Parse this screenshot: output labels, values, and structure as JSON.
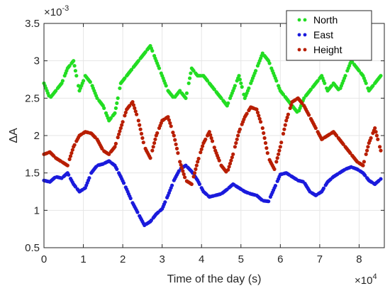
{
  "chart_data": {
    "type": "scatter",
    "xlabel": "Time of the day (s)",
    "ylabel": "ΔA",
    "x_exponent_label": "×10",
    "x_exponent": "4",
    "y_exponent_label": "×10",
    "y_exponent": "-3",
    "xlim": [
      0,
      86400
    ],
    "ylim": [
      0.0005,
      0.0035
    ],
    "x_ticks": [
      0,
      10000,
      20000,
      30000,
      40000,
      50000,
      60000,
      70000,
      80000
    ],
    "x_tick_labels": [
      "0",
      "1",
      "2",
      "3",
      "4",
      "5",
      "6",
      "7",
      "8"
    ],
    "y_ticks": [
      0.0005,
      0.001,
      0.0015,
      0.002,
      0.0025,
      0.003,
      0.0035
    ],
    "y_tick_labels": [
      "0.5",
      "1",
      "1.5",
      "2",
      "2.5",
      "3",
      "3.5"
    ],
    "grid": true,
    "legend_position": "top-right",
    "series": [
      {
        "name": "North",
        "color": "#22dd22",
        "x": [
          0,
          1500,
          3000,
          4500,
          6000,
          7500,
          9000,
          10500,
          12000,
          13500,
          15000,
          16500,
          18000,
          19500,
          21000,
          22500,
          24000,
          25500,
          27000,
          28500,
          30000,
          31500,
          33000,
          34500,
          36000,
          37500,
          39000,
          40500,
          42000,
          43500,
          45000,
          46500,
          48000,
          49500,
          51000,
          52500,
          54000,
          55500,
          57000,
          58500,
          60000,
          61500,
          63000,
          64500,
          66000,
          67500,
          69000,
          70500,
          72000,
          73500,
          75000,
          76500,
          78000,
          79500,
          81000,
          82500,
          84000,
          85500
        ],
        "y": [
          0.0027,
          0.0025,
          0.0026,
          0.0027,
          0.0029,
          0.003,
          0.0026,
          0.0028,
          0.0027,
          0.0025,
          0.0024,
          0.0022,
          0.0023,
          0.0027,
          0.0028,
          0.0029,
          0.003,
          0.0031,
          0.0032,
          0.003,
          0.0028,
          0.0026,
          0.0025,
          0.0026,
          0.0025,
          0.0029,
          0.0028,
          0.0028,
          0.0027,
          0.0026,
          0.0025,
          0.0024,
          0.0026,
          0.0028,
          0.0025,
          0.0027,
          0.0029,
          0.0031,
          0.003,
          0.0028,
          0.0026,
          0.0025,
          0.0024,
          0.0023,
          0.0025,
          0.0026,
          0.0027,
          0.0028,
          0.0026,
          0.0027,
          0.0026,
          0.0028,
          0.003,
          0.0029,
          0.0028,
          0.0026,
          0.0027,
          0.0028
        ]
      },
      {
        "name": "East",
        "color": "#1a1adc",
        "x": [
          0,
          1500,
          3000,
          4500,
          6000,
          7500,
          9000,
          10500,
          12000,
          13500,
          15000,
          16500,
          18000,
          19500,
          21000,
          22500,
          24000,
          25500,
          27000,
          28500,
          30000,
          31500,
          33000,
          34500,
          36000,
          37500,
          39000,
          40500,
          42000,
          43500,
          45000,
          46500,
          48000,
          49500,
          51000,
          52500,
          54000,
          55500,
          57000,
          58500,
          60000,
          61500,
          63000,
          64500,
          66000,
          67500,
          69000,
          70500,
          72000,
          73500,
          75000,
          76500,
          78000,
          79500,
          81000,
          82500,
          84000,
          85500
        ],
        "y": [
          0.0014,
          0.00138,
          0.00145,
          0.00143,
          0.0015,
          0.00135,
          0.00125,
          0.0013,
          0.0015,
          0.0016,
          0.00162,
          0.00166,
          0.0016,
          0.00145,
          0.00128,
          0.0011,
          0.00095,
          0.0008,
          0.00085,
          0.00095,
          0.00102,
          0.0012,
          0.0014,
          0.00155,
          0.0016,
          0.00152,
          0.0014,
          0.00125,
          0.00118,
          0.0012,
          0.00122,
          0.00128,
          0.00135,
          0.0013,
          0.00125,
          0.00122,
          0.0012,
          0.00113,
          0.00112,
          0.0013,
          0.00148,
          0.0015,
          0.00145,
          0.0014,
          0.00138,
          0.00125,
          0.0012,
          0.00125,
          0.00138,
          0.00145,
          0.0015,
          0.00155,
          0.00158,
          0.00155,
          0.0015,
          0.0014,
          0.00135,
          0.00142
        ]
      },
      {
        "name": "Height",
        "color": "#b81e00",
        "x": [
          0,
          1500,
          3000,
          4500,
          6000,
          7500,
          9000,
          10500,
          12000,
          13500,
          15000,
          16500,
          18000,
          19500,
          21000,
          22500,
          24000,
          25500,
          27000,
          28500,
          30000,
          31500,
          33000,
          34500,
          36000,
          37500,
          39000,
          40500,
          42000,
          43500,
          45000,
          46500,
          48000,
          49500,
          51000,
          52500,
          54000,
          55500,
          57000,
          58500,
          60000,
          61500,
          63000,
          64500,
          66000,
          67500,
          69000,
          70500,
          72000,
          73500,
          75000,
          76500,
          78000,
          79500,
          81000,
          82500,
          84000,
          85500
        ],
        "y": [
          0.00175,
          0.00178,
          0.0017,
          0.00165,
          0.0016,
          0.00185,
          0.002,
          0.00205,
          0.00203,
          0.00195,
          0.0018,
          0.00175,
          0.00185,
          0.0021,
          0.00235,
          0.00245,
          0.0022,
          0.00185,
          0.0017,
          0.002,
          0.0022,
          0.00225,
          0.002,
          0.00165,
          0.0014,
          0.00135,
          0.00165,
          0.0019,
          0.00205,
          0.0018,
          0.0016,
          0.0015,
          0.00175,
          0.00205,
          0.00225,
          0.00238,
          0.00235,
          0.0021,
          0.0017,
          0.00155,
          0.00185,
          0.0022,
          0.00245,
          0.0025,
          0.0024,
          0.00225,
          0.0021,
          0.00195,
          0.002,
          0.00205,
          0.00195,
          0.00185,
          0.00175,
          0.00165,
          0.0016,
          0.0019,
          0.0021,
          0.0018
        ]
      }
    ]
  }
}
